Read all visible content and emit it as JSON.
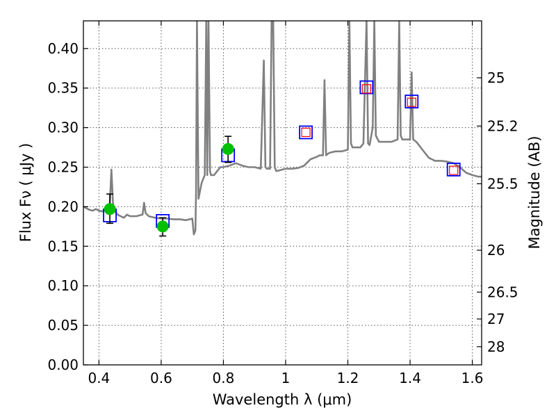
{
  "chart_data": {
    "type": "line",
    "xlabel": "Wavelength  λ (μm)",
    "ylabel": "Flux  Fν  ( μJy )",
    "ylabel_right": "Magnitude (AB)",
    "xlim": [
      0.35,
      1.63
    ],
    "ylim": [
      0.0,
      0.435
    ],
    "grid": true,
    "x_ticks": [
      0.4,
      0.6,
      0.8,
      1.0,
      1.2,
      1.4,
      1.6
    ],
    "x_tick_labels": [
      "0.4",
      "0.6",
      "0.8",
      "1",
      "1.2",
      "1.4",
      "1.6"
    ],
    "y_ticks": [
      0.0,
      0.05,
      0.1,
      0.15,
      0.2,
      0.25,
      0.3,
      0.35,
      0.4
    ],
    "y_tick_labels": [
      "0.00",
      "0.05",
      "0.10",
      "0.15",
      "0.20",
      "0.25",
      "0.30",
      "0.35",
      "0.40"
    ],
    "right_ticks": [
      {
        "label": "25",
        "flux": 0.363
      },
      {
        "label": "25.2",
        "flux": 0.302
      },
      {
        "label": "25.5",
        "flux": 0.229
      },
      {
        "label": "26",
        "flux": 0.145
      },
      {
        "label": "26.5",
        "flux": 0.092
      },
      {
        "label": "27",
        "flux": 0.058
      },
      {
        "label": "28",
        "flux": 0.023
      }
    ],
    "series": [
      {
        "kind": "model-spectrum",
        "color": "#808080",
        "x": [
          0.35,
          0.36,
          0.37,
          0.38,
          0.39,
          0.4,
          0.41,
          0.42,
          0.43,
          0.435,
          0.44,
          0.445,
          0.45,
          0.46,
          0.47,
          0.48,
          0.49,
          0.5,
          0.52,
          0.54,
          0.545,
          0.55,
          0.56,
          0.58,
          0.6,
          0.62,
          0.64,
          0.66,
          0.68,
          0.7,
          0.705,
          0.71,
          0.712,
          0.715,
          0.72,
          0.73,
          0.74,
          0.745,
          0.748,
          0.752,
          0.757,
          0.76,
          0.77,
          0.78,
          0.79,
          0.8,
          0.82,
          0.84,
          0.86,
          0.88,
          0.9,
          0.92,
          0.93,
          0.935,
          0.94,
          0.95,
          0.955,
          0.96,
          0.965,
          0.97,
          1.0,
          1.02,
          1.04,
          1.06,
          1.08,
          1.1,
          1.11,
          1.12,
          1.125,
          1.13,
          1.14,
          1.16,
          1.18,
          1.2,
          1.205,
          1.21,
          1.215,
          1.22,
          1.24,
          1.25,
          1.26,
          1.265,
          1.27,
          1.28,
          1.285,
          1.29,
          1.3,
          1.32,
          1.34,
          1.36,
          1.365,
          1.37,
          1.375,
          1.38,
          1.39,
          1.4,
          1.405,
          1.41,
          1.42,
          1.44,
          1.46,
          1.48,
          1.5,
          1.52,
          1.54,
          1.56,
          1.58,
          1.6,
          1.62,
          1.63
        ],
        "y": [
          0.2,
          0.198,
          0.196,
          0.195,
          0.197,
          0.195,
          0.194,
          0.196,
          0.198,
          0.205,
          0.247,
          0.205,
          0.195,
          0.19,
          0.188,
          0.186,
          0.19,
          0.188,
          0.188,
          0.19,
          0.205,
          0.192,
          0.188,
          0.186,
          0.185,
          0.185,
          0.184,
          0.184,
          0.183,
          0.185,
          0.165,
          0.17,
          0.22,
          0.435,
          0.21,
          0.23,
          0.24,
          0.435,
          0.24,
          0.435,
          0.245,
          0.24,
          0.24,
          0.245,
          0.25,
          0.25,
          0.252,
          0.255,
          0.252,
          0.25,
          0.25,
          0.248,
          0.385,
          0.25,
          0.248,
          0.248,
          0.435,
          0.435,
          0.25,
          0.245,
          0.248,
          0.248,
          0.249,
          0.252,
          0.26,
          0.263,
          0.265,
          0.265,
          0.36,
          0.265,
          0.268,
          0.27,
          0.27,
          0.272,
          0.435,
          0.28,
          0.275,
          0.275,
          0.275,
          0.28,
          0.435,
          0.28,
          0.278,
          0.3,
          0.435,
          0.29,
          0.282,
          0.282,
          0.282,
          0.285,
          0.435,
          0.29,
          0.285,
          0.285,
          0.285,
          0.285,
          0.37,
          0.285,
          0.282,
          0.272,
          0.262,
          0.258,
          0.258,
          0.257,
          0.255,
          0.25,
          0.243,
          0.24,
          0.238,
          0.238
        ]
      },
      {
        "kind": "model-photometry",
        "marker": "square",
        "color": "#0000ff",
        "x": [
          0.435,
          0.605,
          0.815,
          1.065,
          1.26,
          1.405,
          1.54
        ],
        "y": [
          0.189,
          0.182,
          0.265,
          0.294,
          0.351,
          0.333,
          0.247
        ]
      },
      {
        "kind": "observed-photometry-upper",
        "marker": "square",
        "color": "#ff0000",
        "x": [
          1.065,
          1.26,
          1.405,
          1.54
        ],
        "y": [
          0.294,
          0.349,
          0.332,
          0.246
        ]
      },
      {
        "kind": "observed-photometry",
        "marker": "circle",
        "color": "#00c000",
        "x": [
          0.435,
          0.605,
          0.815
        ],
        "y": [
          0.197,
          0.175,
          0.273
        ],
        "yerr_low": [
          0.179,
          0.163,
          0.256
        ],
        "yerr_high": [
          0.216,
          0.186,
          0.289
        ]
      }
    ]
  }
}
